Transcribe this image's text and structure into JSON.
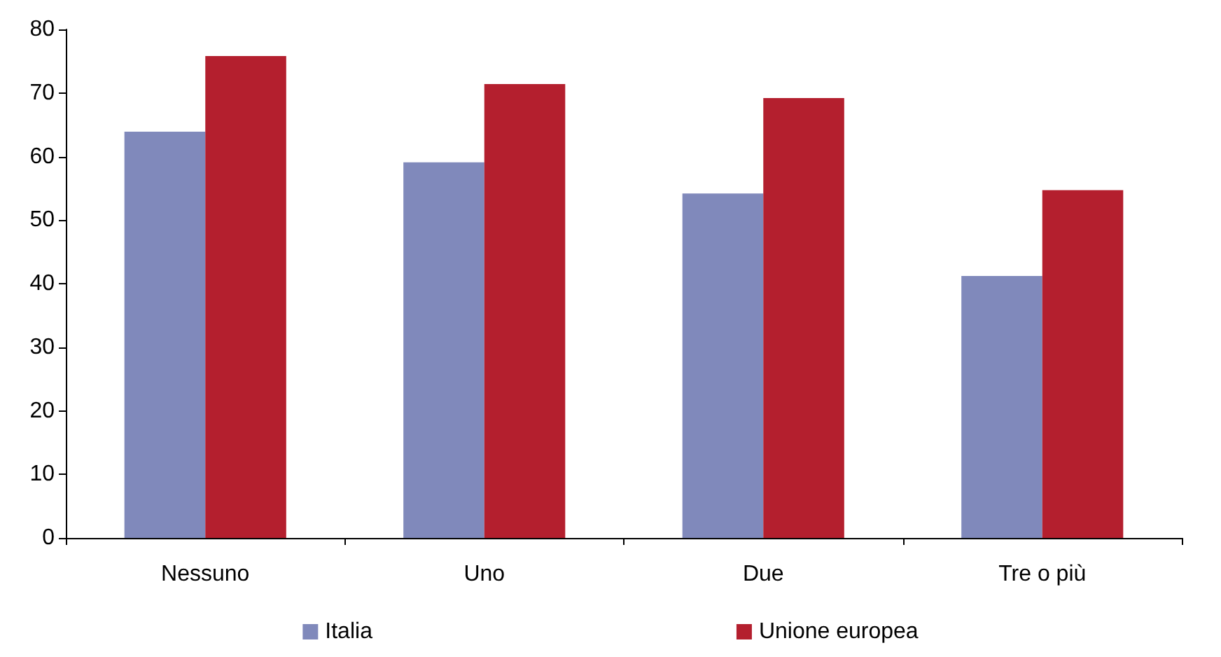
{
  "chart_data": {
    "type": "bar",
    "categories": [
      "Nessuno",
      "Uno",
      "Due",
      "Tre o più"
    ],
    "series": [
      {
        "name": "Italia",
        "color": "#8089bb",
        "values": [
          63.9,
          59.1,
          54.2,
          41.2
        ]
      },
      {
        "name": "Unione europea",
        "color": "#b41f2e",
        "values": [
          75.8,
          71.4,
          69.2,
          54.7
        ]
      }
    ],
    "ylim": [
      0,
      80
    ],
    "yticks": [
      0,
      10,
      20,
      30,
      40,
      50,
      60,
      70,
      80
    ],
    "grid": false,
    "legend": "bottom"
  }
}
